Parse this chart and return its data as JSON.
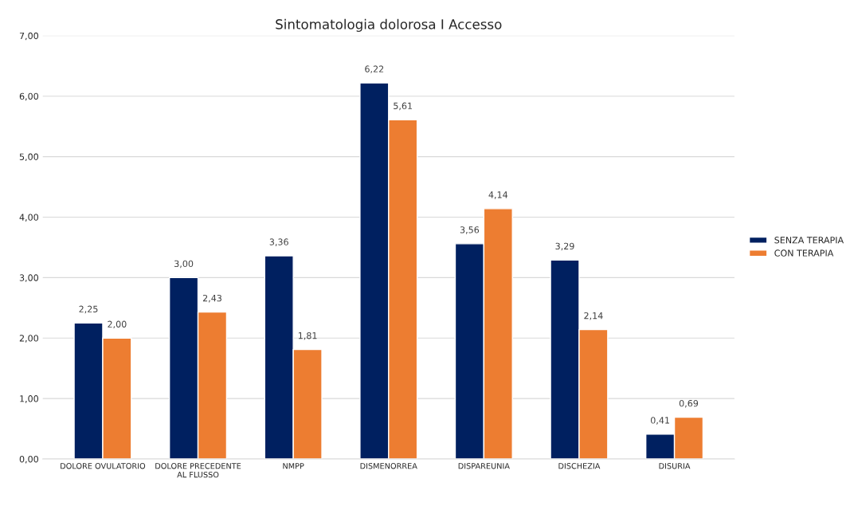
{
  "chart_data": {
    "type": "bar",
    "title": "Sintomatologia dolorosa I Accesso",
    "categories": [
      "DOLORE OVULATORIO",
      "DOLORE PRECEDENTE\nAL FLUSSO",
      "NMPP",
      "DISMENORREA",
      "DISPAREUNIA",
      "DISCHEZIA",
      "DISURIA"
    ],
    "series": [
      {
        "name": "SENZA TERAPIA",
        "color": "#002060",
        "values": [
          2.25,
          3.0,
          3.36,
          6.22,
          3.56,
          3.29,
          0.41
        ],
        "value_labels": [
          "2,25",
          "3,00",
          "3,36",
          "6,22",
          "3,56",
          "3,29",
          "0,41"
        ]
      },
      {
        "name": "CON TERAPIA",
        "color": "#ed7d31",
        "values": [
          2.0,
          2.43,
          1.81,
          5.61,
          4.14,
          2.14,
          0.69
        ],
        "value_labels": [
          "2,00",
          "2,43",
          "1,81",
          "5,61",
          "4,14",
          "2,14",
          "0,69"
        ]
      }
    ],
    "ylim": [
      0,
      7
    ],
    "yticks": [
      {
        "value": 0,
        "label": "0,00"
      },
      {
        "value": 1,
        "label": "1,00"
      },
      {
        "value": 2,
        "label": "2,00"
      },
      {
        "value": 3,
        "label": "3,00"
      },
      {
        "value": 4,
        "label": "4,00"
      },
      {
        "value": 5,
        "label": "5,00"
      },
      {
        "value": 6,
        "label": "6,00"
      },
      {
        "value": 7,
        "label": "7,00"
      }
    ],
    "grid": "y",
    "legend": "right"
  }
}
